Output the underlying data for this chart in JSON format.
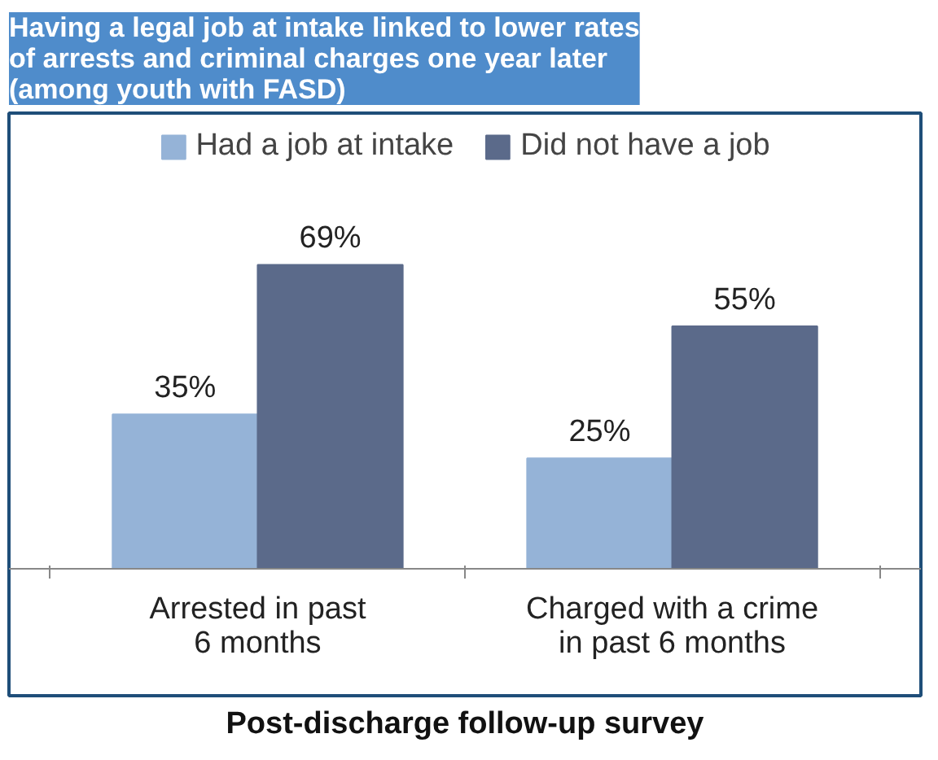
{
  "chart_data": {
    "type": "bar",
    "title": "Having a legal job at intake linked to lower rates\nof arrests and criminal charges one year later\n(among youth with FASD)",
    "xlabel": "Post-discharge follow-up survey",
    "categories": [
      "Arrested in past\n6 months",
      "Charged with a crime\nin past 6 months"
    ],
    "series": [
      {
        "name": "Had a job at intake",
        "color": "#95b3d7",
        "values": [
          35,
          25
        ],
        "value_labels": [
          "35%",
          "25%"
        ]
      },
      {
        "name": "Did not have a job",
        "color": "#5b6a8a",
        "values": [
          69,
          55
        ],
        "value_labels": [
          "69%",
          "55%"
        ]
      }
    ],
    "legend": "top"
  }
}
